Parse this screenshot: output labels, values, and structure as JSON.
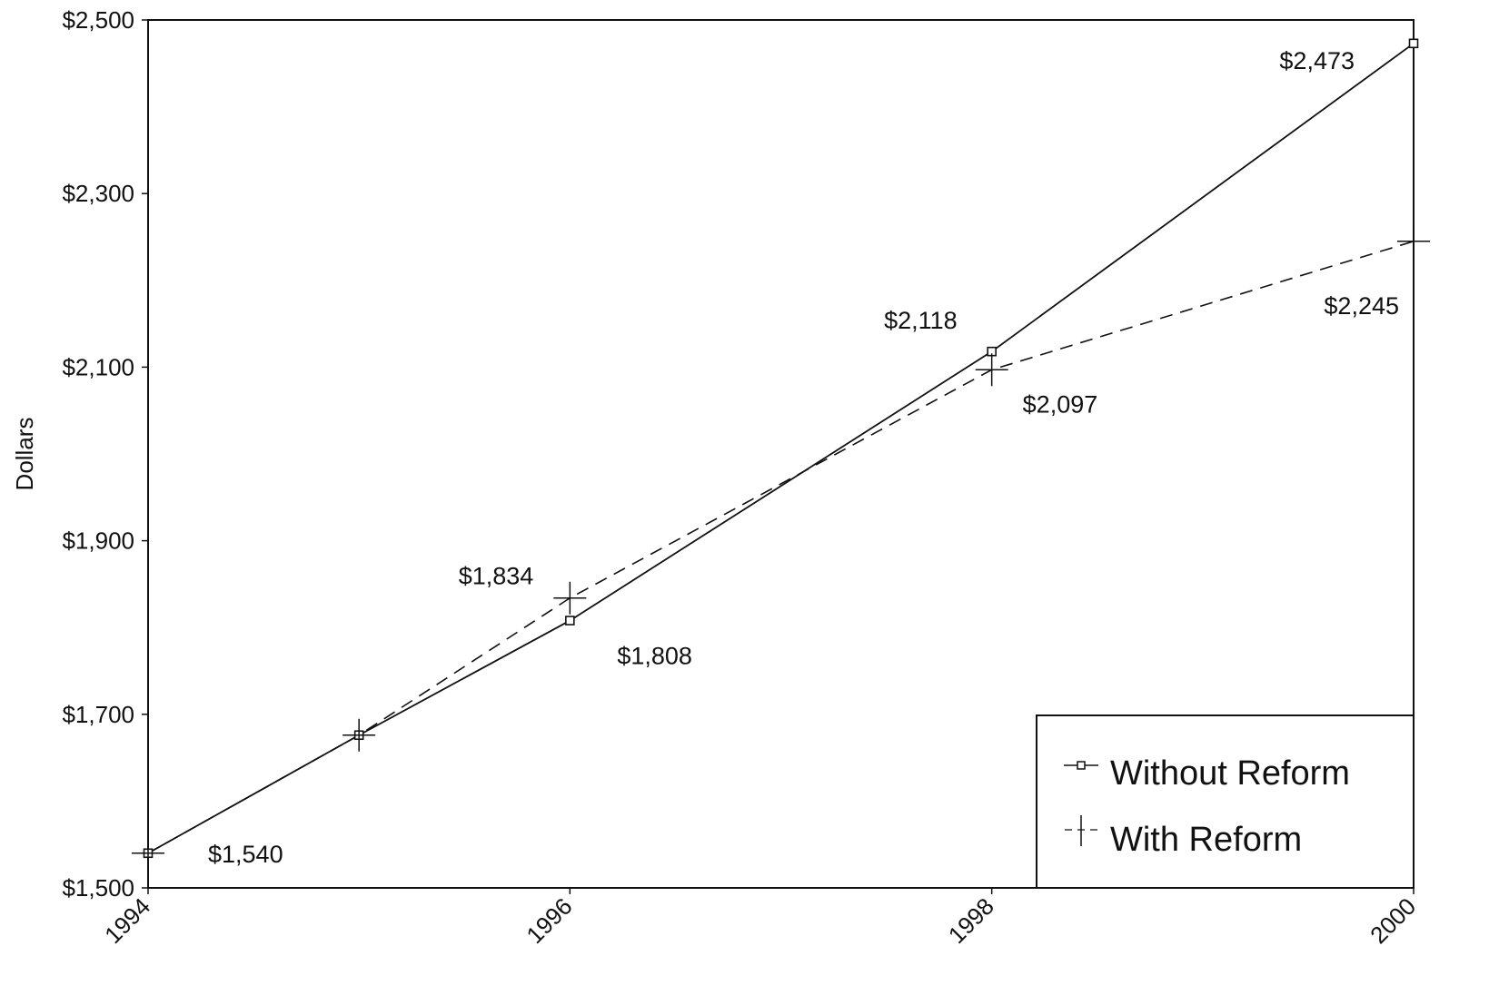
{
  "chart_data": {
    "type": "line",
    "title": "",
    "xlabel": "",
    "ylabel": "Dollars",
    "x": [
      1994,
      1995,
      1996,
      1998,
      2000
    ],
    "x_ticks": [
      "1994",
      "1996",
      "1998",
      "2000"
    ],
    "xlim": [
      1994,
      2000
    ],
    "ylim": [
      1500,
      2500
    ],
    "y_ticks": [
      "$1,500",
      "$1,700",
      "$1,900",
      "$2,100",
      "$2,300",
      "$2,500"
    ],
    "grid": false,
    "legend_position": "bottom-right",
    "series": [
      {
        "name": "Without Reform",
        "marker": "square",
        "line_style": "solid",
        "values": [
          1540,
          1676,
          1808,
          2118,
          2473
        ],
        "labels": [
          "$1,540",
          "",
          "$1,808",
          "$2,118",
          "$2,473"
        ]
      },
      {
        "name": "With Reform",
        "marker": "plus",
        "line_style": "dashed",
        "values": [
          1540,
          1676,
          1834,
          2097,
          2245
        ],
        "labels": [
          "",
          "",
          "$1,834",
          "$2,097",
          "$2,245"
        ]
      }
    ]
  }
}
